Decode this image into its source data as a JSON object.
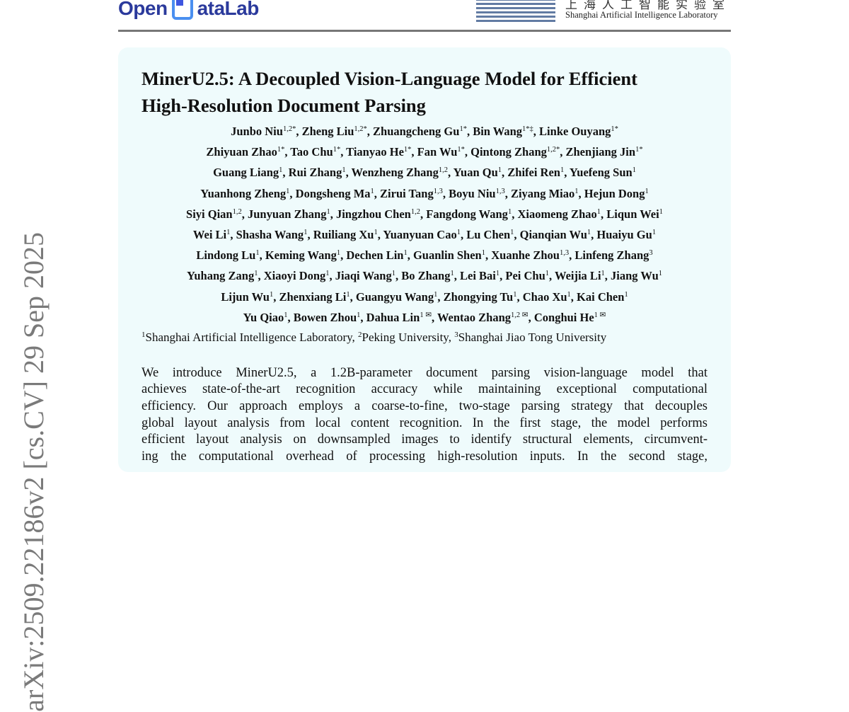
{
  "stamp": "arXiv:2509.22186v2  [cs.CV]  29 Sep 2025",
  "header": {
    "logo_left_a": "Open",
    "logo_left_b": "ataLab",
    "logo_right_cn": "上海人工智能实验室",
    "logo_right_en": "Shanghai Artificial Intelligence Laboratory"
  },
  "paper": {
    "title_line1": "MinerU2.5: A Decoupled Vision-Language Model for Efficient",
    "title_line2": "High-Resolution Document Parsing",
    "author_lines": [
      [
        [
          "Junbo Niu",
          "1,2*"
        ],
        [
          "Zheng Liu",
          "1,2*"
        ],
        [
          "Zhuangcheng Gu",
          "1*"
        ],
        [
          "Bin Wang",
          "1*‡"
        ],
        [
          "Linke Ouyang",
          "1*"
        ]
      ],
      [
        [
          "Zhiyuan Zhao",
          "1*"
        ],
        [
          "Tao Chu",
          "1*"
        ],
        [
          "Tianyao He",
          "1*"
        ],
        [
          "Fan Wu",
          "1*"
        ],
        [
          "Qintong Zhang",
          "1,2*"
        ],
        [
          "Zhenjiang Jin",
          "1*"
        ]
      ],
      [
        [
          "Guang Liang",
          "1"
        ],
        [
          "Rui Zhang",
          "1"
        ],
        [
          "Wenzheng Zhang",
          "1,2"
        ],
        [
          "Yuan Qu",
          "1"
        ],
        [
          "Zhifei Ren",
          "1"
        ],
        [
          "Yuefeng Sun",
          "1"
        ]
      ],
      [
        [
          "Yuanhong Zheng",
          "1"
        ],
        [
          "Dongsheng Ma",
          "1"
        ],
        [
          "Zirui Tang",
          "1,3"
        ],
        [
          "Boyu Niu",
          "1,3"
        ],
        [
          "Ziyang Miao",
          "1"
        ],
        [
          "Hejun Dong",
          "1"
        ]
      ],
      [
        [
          "Siyi Qian",
          "1,2"
        ],
        [
          "Junyuan Zhang",
          "1"
        ],
        [
          "Jingzhou Chen",
          "1,2"
        ],
        [
          "Fangdong Wang",
          "1"
        ],
        [
          "Xiaomeng Zhao",
          "1"
        ],
        [
          "Liqun Wei",
          "1"
        ]
      ],
      [
        [
          "Wei Li",
          "1"
        ],
        [
          "Shasha Wang",
          "1"
        ],
        [
          "Ruiliang Xu",
          "1"
        ],
        [
          "Yuanyuan Cao",
          "1"
        ],
        [
          "Lu Chen",
          "1"
        ],
        [
          "Qianqian Wu",
          "1"
        ],
        [
          "Huaiyu Gu",
          "1"
        ]
      ],
      [
        [
          "Lindong Lu",
          "1"
        ],
        [
          "Keming Wang",
          "1"
        ],
        [
          "Dechen Lin",
          "1"
        ],
        [
          "Guanlin Shen",
          "1"
        ],
        [
          "Xuanhe Zhou",
          "1,3"
        ],
        [
          "Linfeng Zhang",
          "3"
        ]
      ],
      [
        [
          "Yuhang Zang",
          "1"
        ],
        [
          "Xiaoyi Dong",
          "1"
        ],
        [
          "Jiaqi Wang",
          "1"
        ],
        [
          "Bo Zhang",
          "1"
        ],
        [
          "Lei Bai",
          "1"
        ],
        [
          "Pei Chu",
          "1"
        ],
        [
          "Weijia Li",
          "1"
        ],
        [
          "Jiang Wu",
          "1"
        ]
      ],
      [
        [
          "Lijun Wu",
          "1"
        ],
        [
          "Zhenxiang Li",
          "1"
        ],
        [
          "Guangyu Wang",
          "1"
        ],
        [
          "Zhongying Tu",
          "1"
        ],
        [
          "Chao Xu",
          "1"
        ],
        [
          "Kai Chen",
          "1"
        ]
      ],
      [
        [
          "Yu Qiao",
          "1"
        ],
        [
          "Bowen Zhou",
          "1"
        ],
        [
          "Dahua Lin",
          "1 ✉"
        ],
        [
          "Wentao Zhang",
          "1,2 ✉"
        ],
        [
          "Conghui He",
          "1 ✉"
        ]
      ]
    ],
    "affiliations": [
      [
        "1",
        "Shanghai Artificial Intelligence Laboratory"
      ],
      [
        "2",
        "Peking University"
      ],
      [
        "3",
        "Shanghai Jiao Tong University"
      ]
    ],
    "abstract_lines": [
      "We introduce MinerU2.5, a 1.2B-parameter document parsing vision-language model that",
      "achieves state-of-the-art recognition accuracy while maintaining exceptional computational",
      "efficiency. Our approach employs a coarse-to-fine, two-stage parsing strategy that decouples",
      "global layout analysis from local content recognition. In the first stage, the model performs",
      "efficient layout analysis on downsampled images to identify structural elements, circumvent-",
      "ing the computational overhead of processing high-resolution inputs. In the second stage,"
    ]
  }
}
